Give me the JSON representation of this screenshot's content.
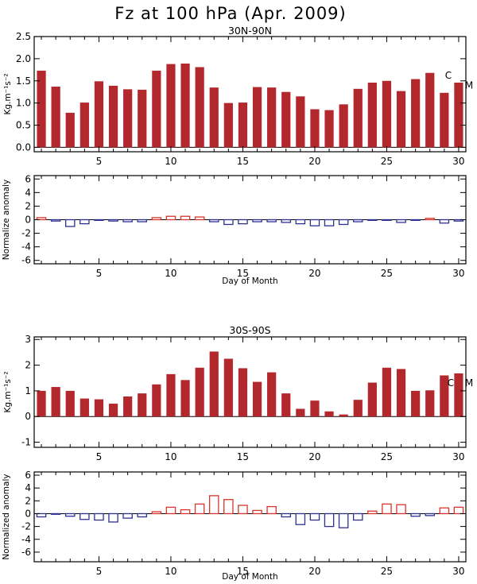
{
  "figure": {
    "title": "Fz at 100 hPa (Apr. 2009)"
  },
  "colors": {
    "bar_fill": "#b3282d",
    "positive_anomaly": "#d9342b",
    "negative_anomaly": "#2e3192",
    "axis": "#000000"
  },
  "chart_data": [
    {
      "id": "nh_flux",
      "type": "bar",
      "title": "30N-90N",
      "xlabel": "",
      "ylabel": "Kg.m⁻¹s⁻²",
      "xlim": [
        0.5,
        30.5
      ],
      "ylim": [
        -0.1,
        2.5
      ],
      "xticks": [
        5,
        10,
        15,
        20,
        25,
        30
      ],
      "yticks": [
        0.0,
        0.5,
        1.0,
        1.5,
        2.0,
        2.5
      ],
      "ytick_labels": [
        "0.0",
        "0.5",
        "1.0",
        "1.5",
        "2.0",
        "2.5"
      ],
      "x": [
        1,
        2,
        3,
        4,
        5,
        6,
        7,
        8,
        9,
        10,
        11,
        12,
        13,
        14,
        15,
        16,
        17,
        18,
        19,
        20,
        21,
        22,
        23,
        24,
        25,
        26,
        27,
        28,
        29,
        30
      ],
      "values": [
        1.73,
        1.37,
        0.78,
        1.01,
        1.49,
        1.39,
        1.31,
        1.3,
        1.73,
        1.88,
        1.89,
        1.81,
        1.35,
        1.0,
        1.01,
        1.36,
        1.35,
        1.25,
        1.15,
        0.86,
        0.84,
        0.97,
        1.32,
        1.46,
        1.5,
        1.27,
        1.54,
        1.68,
        1.23,
        1.46
      ],
      "bar_style": "filled",
      "annotations": [
        {
          "text": "C",
          "y": 1.62
        },
        {
          "text": "M",
          "y": 1.4
        }
      ]
    },
    {
      "id": "nh_anomaly",
      "type": "bar",
      "title": "",
      "xlabel": "Day of Month",
      "ylabel": "Normalize anomaly",
      "xlim": [
        0.5,
        30.5
      ],
      "ylim": [
        -6.5,
        6.5
      ],
      "xticks": [
        5,
        10,
        15,
        20,
        25,
        30
      ],
      "yticks": [
        -6,
        -4,
        -2,
        0,
        2,
        4,
        6
      ],
      "ytick_labels": [
        "-6",
        "-4",
        "-2",
        "0",
        "2",
        "4",
        "6"
      ],
      "x": [
        1,
        2,
        3,
        4,
        5,
        6,
        7,
        8,
        9,
        10,
        11,
        12,
        13,
        14,
        15,
        16,
        17,
        18,
        19,
        20,
        21,
        22,
        23,
        24,
        25,
        26,
        27,
        28,
        29,
        30
      ],
      "values": [
        0.3,
        -0.2,
        -1.0,
        -0.6,
        -0.1,
        -0.2,
        -0.3,
        -0.3,
        0.3,
        0.5,
        0.5,
        0.4,
        -0.3,
        -0.7,
        -0.6,
        -0.3,
        -0.3,
        -0.4,
        -0.6,
        -0.9,
        -0.9,
        -0.7,
        -0.3,
        -0.1,
        -0.1,
        -0.4,
        -0.1,
        0.2,
        -0.5,
        -0.2
      ],
      "bar_style": "outline"
    },
    {
      "id": "sh_flux",
      "type": "bar",
      "title": "30S-90S",
      "xlabel": "",
      "ylabel": "Kg.m⁻¹s⁻²",
      "xlim": [
        0.5,
        30.5
      ],
      "ylim": [
        -1.2,
        3.1
      ],
      "xticks": [
        5,
        10,
        15,
        20,
        25,
        30
      ],
      "yticks": [
        -1,
        0,
        1,
        2,
        3
      ],
      "ytick_labels": [
        "-1",
        "0",
        "1",
        "2",
        "3"
      ],
      "x": [
        1,
        2,
        3,
        4,
        5,
        6,
        7,
        8,
        9,
        10,
        11,
        12,
        13,
        14,
        15,
        16,
        17,
        18,
        19,
        20,
        21,
        22,
        23,
        24,
        25,
        26,
        27,
        28,
        29,
        30
      ],
      "values": [
        1.0,
        1.15,
        1.0,
        0.7,
        0.67,
        0.5,
        0.78,
        0.9,
        1.25,
        1.65,
        1.42,
        1.9,
        2.53,
        2.25,
        1.88,
        1.35,
        1.72,
        0.9,
        0.3,
        0.62,
        0.2,
        0.08,
        0.65,
        1.32,
        1.9,
        1.85,
        1.0,
        1.02,
        1.6,
        1.68
      ],
      "bar_style": "filled",
      "annotations": [
        {
          "text": "C",
          "y": 1.3
        },
        {
          "text": "M",
          "y": 1.3
        }
      ]
    },
    {
      "id": "sh_anomaly",
      "type": "bar",
      "title": "",
      "xlabel": "Day of Month",
      "ylabel": "Normalized anomaly",
      "xlim": [
        0.5,
        30.5
      ],
      "ylim": [
        -7.5,
        6.5
      ],
      "xticks": [
        5,
        10,
        15,
        20,
        25,
        30
      ],
      "yticks": [
        -6,
        -4,
        -2,
        0,
        2,
        4,
        6
      ],
      "ytick_labels": [
        "-6",
        "-4",
        "-2",
        "0",
        "2",
        "4",
        "6"
      ],
      "x": [
        1,
        2,
        3,
        4,
        5,
        6,
        7,
        8,
        9,
        10,
        11,
        12,
        13,
        14,
        15,
        16,
        17,
        18,
        19,
        20,
        21,
        22,
        23,
        24,
        25,
        26,
        27,
        28,
        29,
        30
      ],
      "values": [
        -0.5,
        -0.1,
        -0.4,
        -0.9,
        -1.0,
        -1.3,
        -0.7,
        -0.5,
        0.3,
        1.0,
        0.6,
        1.5,
        2.8,
        2.2,
        1.3,
        0.5,
        1.1,
        -0.5,
        -1.7,
        -1.0,
        -2.0,
        -2.2,
        -1.0,
        0.4,
        1.5,
        1.4,
        -0.4,
        -0.3,
        0.9,
        1.0
      ],
      "bar_style": "outline"
    }
  ]
}
